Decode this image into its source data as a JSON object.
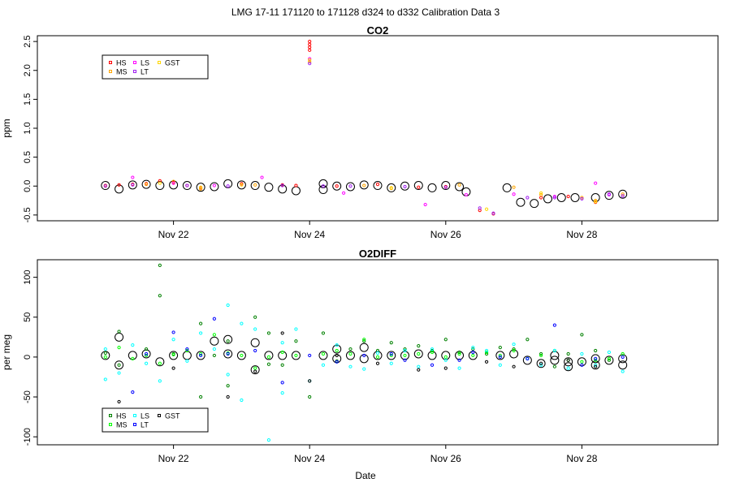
{
  "page_title": "LMG   17-11    171120 to 171128    d324 to d332   Calibration Data 3",
  "xlabel": "Date",
  "x_ticks": [
    "Nov 22",
    "Nov 24",
    "Nov 26",
    "Nov 28"
  ],
  "x_tick_values": [
    22,
    24,
    26,
    28
  ],
  "xlim": [
    20.0,
    30.0
  ],
  "colors": {
    "HS": "#ff0000",
    "MS": "#ffa500",
    "LS": "#ff00ff",
    "LT": "#a020f0",
    "GST": "#ffd700",
    "HS2": "#008000",
    "MS2": "#00ff00",
    "LS2": "#00ffff",
    "LT2": "#0000ff",
    "GST2": "#000000",
    "ref": "#000000"
  },
  "chart_data": [
    {
      "type": "scatter",
      "title": "CO2",
      "ylabel": "ppm",
      "ylim": [
        -0.6,
        2.6
      ],
      "yticks": [
        "-0.5",
        "0.0",
        "0.5",
        "1.0",
        "1.5",
        "2.0",
        "2.5"
      ],
      "ytick_values": [
        -0.5,
        0.0,
        0.5,
        1.0,
        1.5,
        2.0,
        2.5
      ],
      "legend": {
        "position": "top-left",
        "entries": [
          "HS",
          "MS",
          "LS",
          "LT",
          "GST"
        ]
      },
      "series": [
        {
          "name": "HS",
          "x": [
            21.0,
            21.2,
            21.4,
            21.6,
            21.8,
            22.0,
            22.2,
            22.4,
            23.0,
            23.6,
            23.8,
            24.0,
            24.0,
            24.0,
            24.0,
            24.4,
            25.0,
            25.6,
            26.0,
            26.5,
            26.7,
            27.4,
            27.8,
            28.2
          ],
          "y": [
            0.01,
            0.02,
            0.03,
            0.04,
            0.09,
            0.06,
            0.01,
            -0.03,
            0.04,
            0.02,
            0.01,
            2.5,
            2.45,
            2.4,
            2.35,
            0.0,
            0.03,
            -0.02,
            -0.01,
            -0.42,
            -0.48,
            -0.2,
            -0.18,
            -0.28
          ]
        },
        {
          "name": "MS",
          "x": [
            21.0,
            21.6,
            22.0,
            22.4,
            23.2,
            24.0,
            24.8,
            25.2,
            26.2,
            27.0,
            27.4,
            28.0,
            28.2,
            28.6
          ],
          "y": [
            0.0,
            0.03,
            0.08,
            -0.05,
            0.02,
            2.15,
            0.01,
            -0.04,
            0.02,
            -0.02,
            -0.15,
            -0.2,
            -0.25,
            -0.14
          ]
        },
        {
          "name": "LS",
          "x": [
            21.4,
            22.0,
            22.6,
            23.3,
            24.0,
            24.5,
            25.7,
            26.3,
            27.0,
            27.6,
            28.2,
            28.4
          ],
          "y": [
            0.15,
            0.05,
            0.01,
            0.15,
            2.2,
            -0.12,
            -0.32,
            -0.15,
            -0.14,
            -0.18,
            0.05,
            -0.15
          ]
        },
        {
          "name": "LT",
          "x": [
            21.0,
            21.4,
            22.2,
            22.8,
            23.6,
            24.0,
            24.2,
            24.6,
            25.4,
            26.0,
            26.5,
            26.7,
            27.2,
            27.6,
            28.0,
            28.4,
            28.6
          ],
          "y": [
            0.0,
            0.02,
            0.01,
            0.0,
            0.01,
            2.12,
            0.0,
            0.0,
            -0.01,
            -0.02,
            -0.38,
            -0.47,
            -0.2,
            -0.2,
            -0.22,
            -0.14,
            -0.17
          ]
        },
        {
          "name": "GST",
          "x": [
            21.8,
            22.4,
            23.0,
            24.0,
            25.2,
            26.6,
            27.4,
            28.2
          ],
          "y": [
            0.05,
            -0.02,
            0.02,
            2.18,
            -0.03,
            -0.4,
            -0.12,
            -0.27
          ]
        }
      ],
      "ref_points": {
        "x": [
          21.0,
          21.2,
          21.4,
          21.6,
          21.8,
          22.0,
          22.2,
          22.4,
          22.6,
          22.8,
          23.0,
          23.2,
          23.4,
          23.6,
          23.8,
          24.2,
          24.2,
          24.4,
          24.6,
          24.8,
          25.0,
          25.2,
          25.4,
          25.6,
          25.8,
          26.0,
          26.2,
          26.3,
          26.9,
          27.1,
          27.3,
          27.5,
          27.7,
          27.9,
          28.2,
          28.4,
          28.6
        ],
        "y": [
          0.01,
          -0.05,
          0.02,
          0.03,
          0.01,
          0.02,
          0.01,
          -0.02,
          -0.01,
          0.04,
          0.02,
          0.01,
          -0.02,
          -0.05,
          -0.08,
          0.04,
          -0.06,
          0.0,
          -0.01,
          0.02,
          0.01,
          -0.03,
          0.0,
          0.01,
          -0.03,
          0.01,
          -0.01,
          -0.1,
          -0.03,
          -0.28,
          -0.3,
          -0.22,
          -0.2,
          -0.2,
          -0.2,
          -0.16,
          -0.14
        ]
      }
    },
    {
      "type": "scatter",
      "title": "O2DIFF",
      "ylabel": "per meg",
      "ylim": [
        -110,
        122
      ],
      "yticks": [
        "-100",
        "-50",
        "0",
        "50",
        "100"
      ],
      "ytick_values": [
        -100,
        -50,
        0,
        50,
        100
      ],
      "legend": {
        "position": "bottom-left",
        "entries": [
          "HS",
          "MS",
          "LS",
          "LT",
          "GST"
        ]
      },
      "series": [
        {
          "name": "HS",
          "x": [
            21.0,
            21.2,
            21.2,
            21.6,
            21.8,
            21.8,
            22.0,
            22.4,
            22.4,
            22.6,
            22.8,
            22.8,
            23.2,
            23.4,
            23.4,
            23.6,
            23.8,
            24.0,
            24.2,
            24.4,
            24.6,
            24.8,
            25.0,
            25.2,
            25.4,
            25.6,
            25.8,
            26.0,
            26.2,
            26.4,
            26.6,
            26.8,
            27.0,
            27.2,
            27.4,
            27.6,
            27.8,
            28.0,
            28.2,
            28.4
          ],
          "y": [
            5,
            32,
            -10,
            10,
            77,
            115,
            4,
            42,
            -50,
            2,
            20,
            -36,
            50,
            30,
            -9,
            -10,
            20,
            -50,
            30,
            -5,
            10,
            20,
            8,
            18,
            10,
            14,
            8,
            22,
            6,
            10,
            4,
            12,
            10,
            22,
            4,
            -12,
            4,
            28,
            8,
            -4
          ]
        },
        {
          "name": "MS",
          "x": [
            21.0,
            21.2,
            21.4,
            21.6,
            21.8,
            22.0,
            22.2,
            22.4,
            22.6,
            22.8,
            23.0,
            23.2,
            23.4,
            23.6,
            23.8,
            24.2,
            24.4,
            24.6,
            24.8,
            25.0,
            25.2,
            25.4,
            25.6,
            25.8,
            26.0,
            26.2,
            26.4,
            26.6,
            26.8,
            27.0,
            27.2,
            27.4,
            27.6,
            27.8,
            28.0,
            28.2,
            28.4,
            28.6
          ],
          "y": [
            0,
            12,
            -2,
            2,
            -8,
            3,
            8,
            4,
            28,
            5,
            2,
            -14,
            0,
            6,
            2,
            4,
            8,
            4,
            22,
            0,
            2,
            2,
            4,
            6,
            0,
            4,
            2,
            6,
            2,
            8,
            -2,
            2,
            8,
            -4,
            -6,
            -4,
            -2,
            4
          ]
        },
        {
          "name": "LS",
          "x": [
            21.0,
            21.0,
            21.2,
            21.4,
            21.6,
            21.8,
            22.0,
            22.2,
            22.4,
            22.6,
            22.8,
            22.8,
            23.0,
            23.0,
            23.2,
            23.4,
            23.6,
            23.6,
            23.8,
            24.0,
            24.2,
            24.4,
            24.6,
            24.8,
            25.0,
            25.2,
            25.4,
            25.6,
            25.8,
            26.0,
            26.2,
            26.4,
            26.6,
            26.8,
            27.0,
            27.2,
            27.4,
            27.6,
            27.8,
            28.0,
            28.2,
            28.4,
            28.6
          ],
          "y": [
            -28,
            10,
            -20,
            15,
            -8,
            -30,
            22,
            -5,
            30,
            10,
            65,
            -22,
            42,
            -54,
            35,
            -104,
            -45,
            18,
            35,
            -30,
            -10,
            15,
            -12,
            -15,
            5,
            -8,
            8,
            -12,
            10,
            -4,
            -14,
            12,
            8,
            -10,
            16,
            -2,
            -10,
            8,
            -14,
            4,
            -10,
            6,
            -18
          ]
        },
        {
          "name": "LT",
          "x": [
            21.4,
            21.6,
            22.0,
            22.2,
            22.4,
            22.6,
            22.8,
            23.2,
            23.6,
            24.0,
            24.4,
            24.8,
            25.2,
            25.4,
            25.8,
            26.2,
            26.4,
            26.8,
            27.2,
            27.6,
            28.0,
            28.2,
            28.6
          ],
          "y": [
            -44,
            4,
            31,
            10,
            2,
            48,
            4,
            8,
            -32,
            2,
            -6,
            2,
            4,
            -4,
            -10,
            -4,
            6,
            0,
            -2,
            40,
            -10,
            -2,
            0
          ]
        },
        {
          "name": "GST",
          "x": [
            21.2,
            22.0,
            22.4,
            22.8,
            23.2,
            23.6,
            24.0,
            24.4,
            25.0,
            25.6,
            26.0,
            26.6,
            27.0,
            27.4,
            27.8,
            28.2
          ],
          "y": [
            -56,
            -14,
            -68,
            -50,
            -18,
            30,
            -30,
            2,
            -8,
            -16,
            -14,
            -6,
            -12,
            -8,
            -4,
            -12
          ]
        }
      ],
      "ref_points": {
        "x": [
          21.0,
          21.2,
          21.2,
          21.4,
          21.6,
          21.8,
          22.0,
          22.2,
          22.4,
          22.6,
          22.8,
          22.8,
          23.0,
          23.2,
          23.2,
          23.4,
          23.6,
          23.8,
          24.2,
          24.4,
          24.4,
          24.6,
          24.8,
          24.8,
          25.0,
          25.2,
          25.4,
          25.6,
          25.8,
          26.0,
          26.2,
          26.4,
          26.8,
          27.0,
          27.2,
          27.4,
          27.6,
          27.6,
          27.8,
          27.8,
          28.0,
          28.2,
          28.2,
          28.4,
          28.6,
          28.6
        ],
        "y": [
          2,
          25,
          -10,
          2,
          4,
          -6,
          2,
          2,
          2,
          20,
          22,
          4,
          2,
          18,
          -16,
          2,
          2,
          2,
          2,
          10,
          -2,
          2,
          12,
          -2,
          2,
          2,
          2,
          4,
          2,
          2,
          2,
          2,
          2,
          4,
          -4,
          -8,
          -4,
          2,
          -6,
          -12,
          -6,
          -2,
          -10,
          -4,
          -10,
          -2
        ]
      }
    }
  ]
}
